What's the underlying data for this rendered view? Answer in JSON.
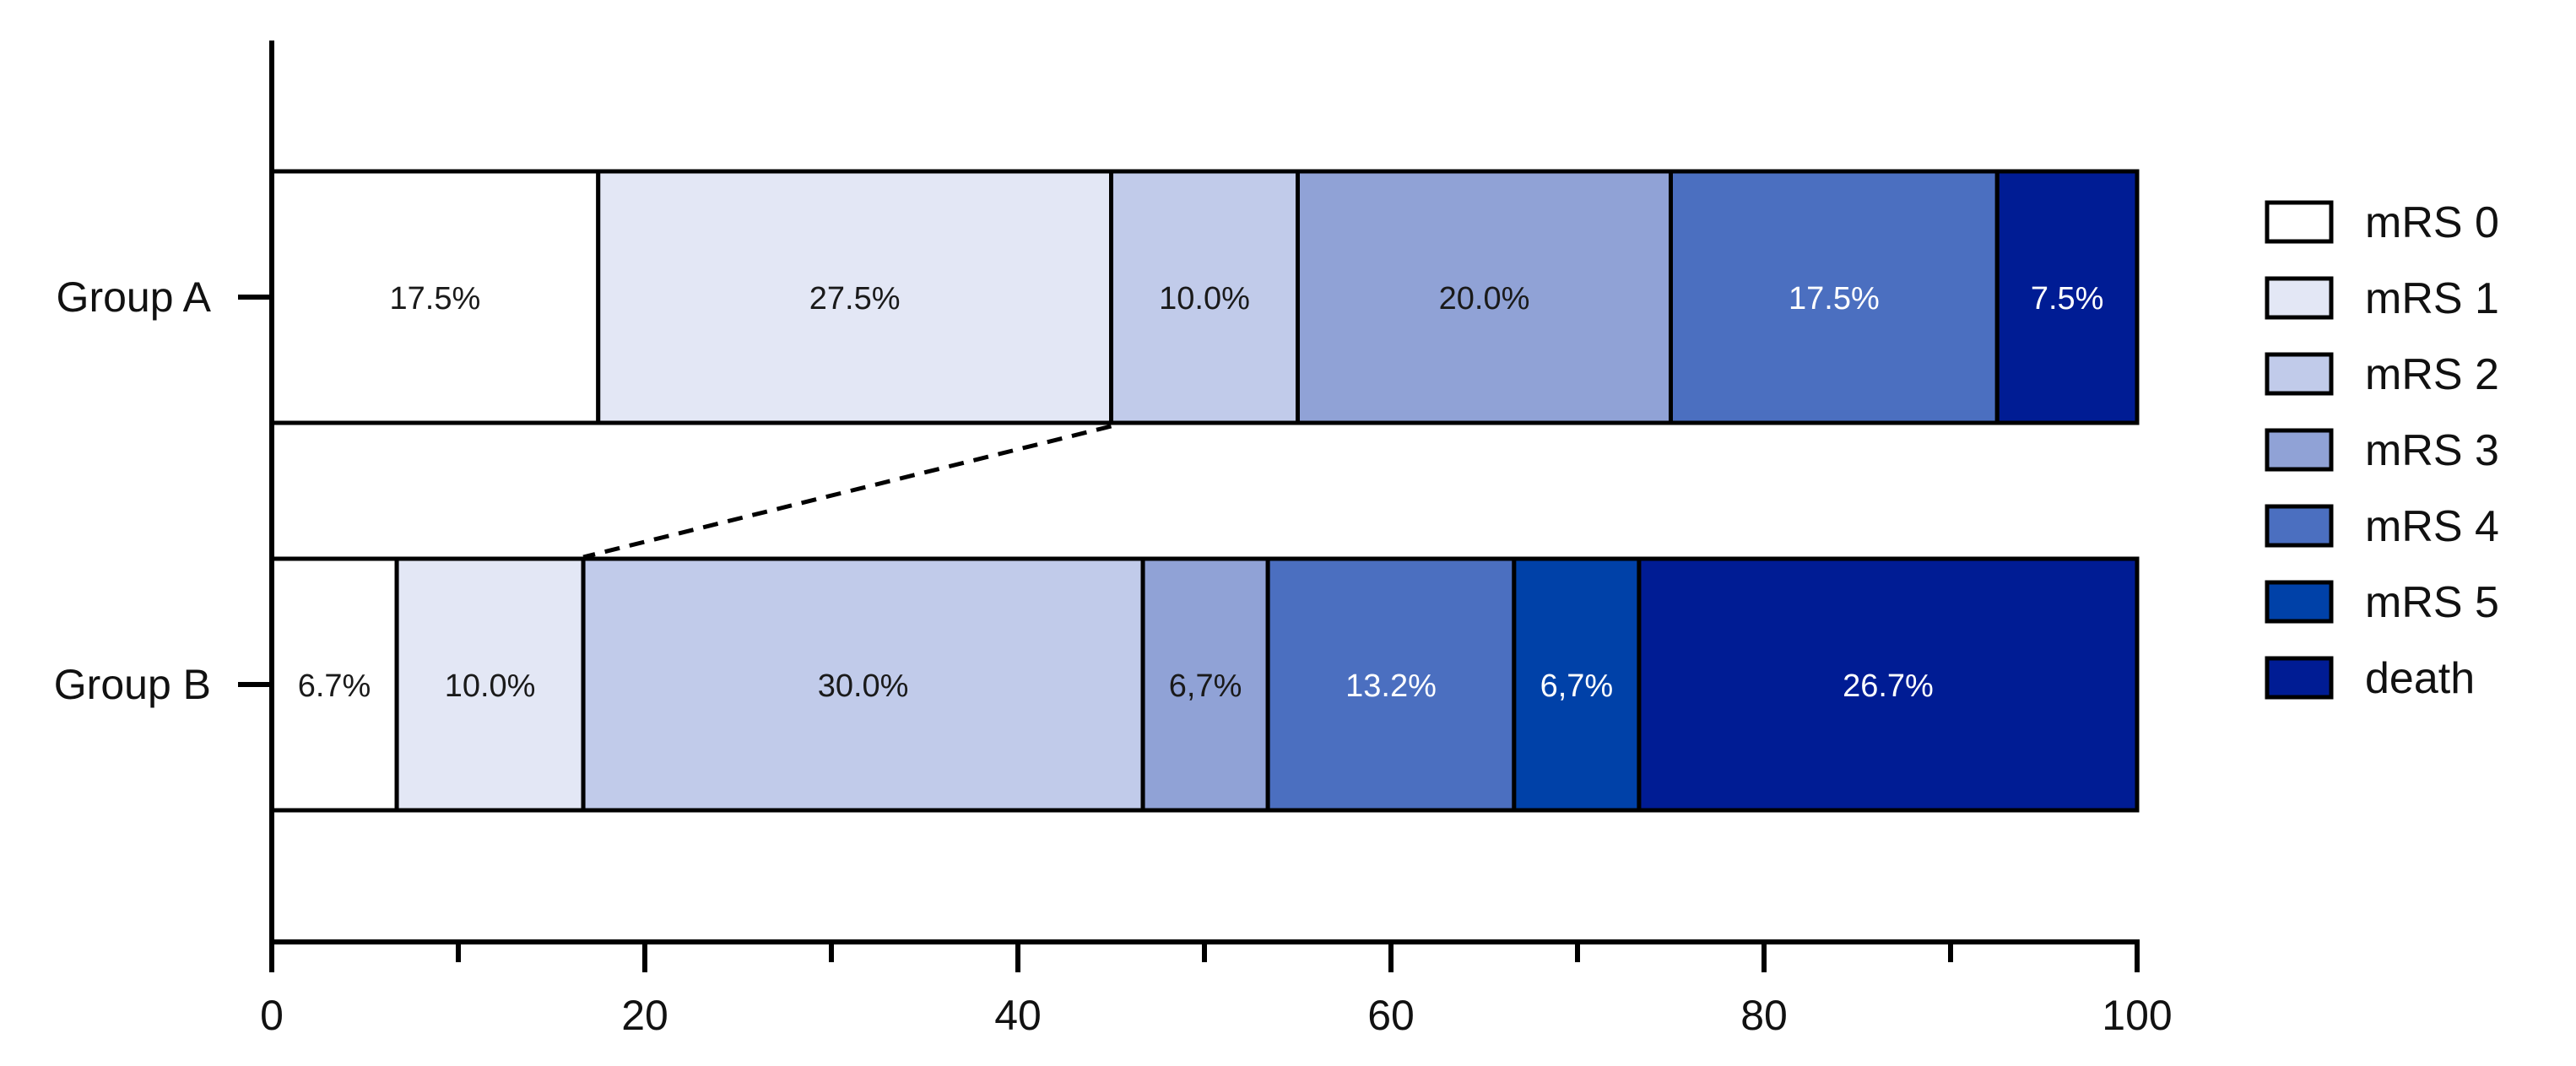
{
  "chart_data": {
    "type": "bar",
    "orientation": "horizontal",
    "stacked": true,
    "categories": [
      "Group A",
      "Group B"
    ],
    "series": [
      {
        "name": "mRS 0",
        "values": [
          17.5,
          6.7
        ],
        "labels": [
          "17.5%",
          "6.7%"
        ],
        "color": "#ffffff"
      },
      {
        "name": "mRS 1",
        "values": [
          27.5,
          10.0
        ],
        "labels": [
          "27.5%",
          "10.0%"
        ],
        "color": "#e3e7f5"
      },
      {
        "name": "mRS 2",
        "values": [
          10.0,
          30.0
        ],
        "labels": [
          "10.0%",
          "30.0%"
        ],
        "color": "#c1cbea"
      },
      {
        "name": "mRS 3",
        "values": [
          20.0,
          6.7
        ],
        "labels": [
          "20.0%",
          "6,7%"
        ],
        "color": "#90a2d6"
      },
      {
        "name": "mRS 4",
        "values": [
          17.5,
          13.2
        ],
        "labels": [
          "17.5%",
          "13.2%"
        ],
        "color": "#4b6fc0"
      },
      {
        "name": "mRS 5",
        "values": [
          0,
          6.7
        ],
        "labels": [
          "",
          "6,7%"
        ],
        "color": "#0041a8"
      },
      {
        "name": "death",
        "values": [
          7.5,
          26.7
        ],
        "labels": [
          "7.5%",
          "26.7%"
        ],
        "color": "#001c94"
      }
    ],
    "xlim": [
      0,
      100
    ],
    "xticks": [
      0,
      20,
      40,
      60,
      80,
      100
    ],
    "xtick_labels": [
      "0",
      "20",
      "40",
      "60",
      "80",
      "100"
    ],
    "grid": false,
    "legend_position": "right",
    "annotations": [
      {
        "type": "dashed-connector",
        "from": {
          "category": "Group A",
          "x": 45.0
        },
        "to": {
          "category": "Group B",
          "x": 16.7
        }
      }
    ],
    "title": "",
    "xlabel": "",
    "ylabel": ""
  }
}
